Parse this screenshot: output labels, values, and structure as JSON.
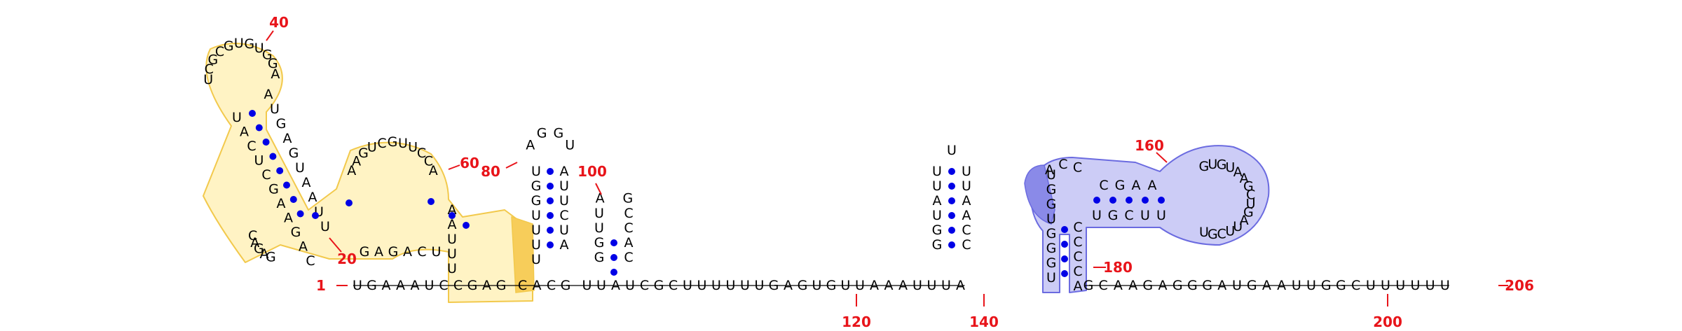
{
  "colors": {
    "nucleotide": "#000000",
    "numbering": "#e8141a",
    "base_pair": "#0000e6",
    "highlight_yellow": "#fff3c4",
    "highlight_yellow_edge": "#f2c94c",
    "highlight_blue": "#ccccf6",
    "highlight_blue_edge": "#6b6be0"
  },
  "labels": [
    "1",
    "20",
    "40",
    "60",
    "80",
    "100",
    "120",
    "140",
    "160",
    "180",
    "200",
    "206"
  ],
  "sequence": {
    "tail_a": [
      "U",
      "G",
      "A",
      "A",
      "A",
      "U",
      "C",
      "C",
      "G",
      "A",
      "G",
      "C",
      "A",
      "C",
      "G",
      "U",
      "U",
      "A",
      "U",
      "C",
      "G",
      "C",
      "U",
      "U",
      "U",
      "U",
      "U",
      "U",
      "G",
      "A",
      "G",
      "U",
      "G",
      "U",
      "U",
      "A",
      "A",
      "A",
      "U",
      "U",
      "U",
      "A"
    ],
    "tail_b": [
      "G",
      "C",
      "A",
      "A",
      "G",
      "A",
      "G",
      "G",
      "G",
      "A",
      "U",
      "G",
      "A",
      "A",
      "U",
      "U",
      "G",
      "G",
      "C",
      "U",
      "U",
      "U",
      "U",
      "U",
      "U"
    ],
    "stem1_left": [
      "U",
      "A",
      "C",
      "U",
      "C",
      "G",
      "A",
      "A",
      "G",
      "A",
      "C"
    ],
    "stem1_right": [
      "A",
      "U",
      "G",
      "A",
      "G",
      "U",
      "A",
      "A",
      "U",
      "U"
    ],
    "loop40": [
      "U",
      "C",
      "G",
      "C",
      "G",
      "U",
      "G",
      "U",
      "G",
      "G",
      "A"
    ],
    "loop60": [
      "A",
      "A",
      "G",
      "U",
      "C",
      "G",
      "U",
      "U",
      "C",
      "C",
      "A",
      "G",
      "A",
      "G",
      "A",
      "C",
      "U",
      "A",
      "A",
      "U",
      "U",
      "U"
    ],
    "hp80_left": [
      "U",
      "G",
      "G",
      "U",
      "U",
      "U",
      "U"
    ],
    "hp80_right": [
      "A",
      "U",
      "U",
      "C",
      "U",
      "A"
    ],
    "hp80_loop": [
      "A",
      "G",
      "G",
      "U"
    ],
    "hp100_left": [
      "U",
      "U",
      "G",
      "G"
    ],
    "hp100_right": [
      "C",
      "C",
      "A",
      "C"
    ],
    "hp100_loop": [
      "A",
      "G"
    ],
    "hp140_left": [
      "U",
      "U",
      "A",
      "U",
      "G",
      "G"
    ],
    "hp140_right": [
      "U",
      "U",
      "A",
      "A",
      "C",
      "C"
    ],
    "hp140_loop": [
      "U"
    ],
    "stem180_left": [
      "U",
      "G",
      "G",
      "U",
      "G",
      "G",
      "G",
      "U"
    ],
    "stem180_right": [
      "C",
      "C",
      "C",
      "C",
      "A"
    ],
    "loop160": [
      "A",
      "C",
      "C",
      "G",
      "A",
      "A",
      "C",
      "C",
      "G",
      "U",
      "G",
      "U",
      "A",
      "A",
      "G",
      "C",
      "U",
      "G",
      "A",
      "U",
      "U",
      "C",
      "G",
      "U"
    ]
  }
}
